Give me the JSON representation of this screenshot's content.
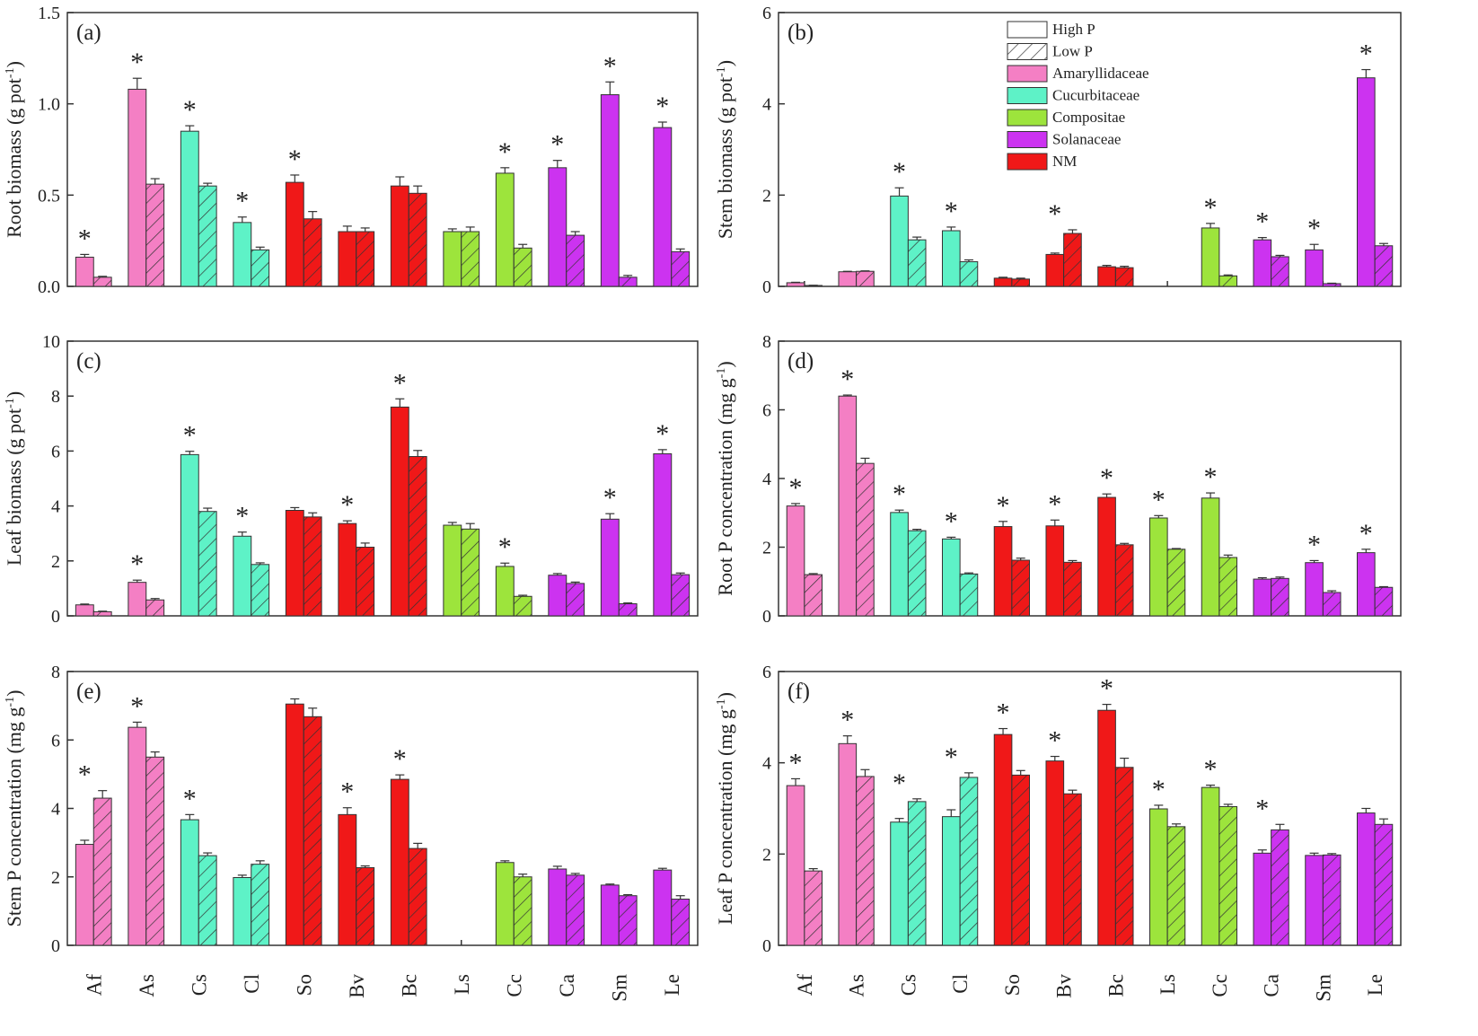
{
  "chart_data": [
    {
      "type": "bar",
      "panel_label": "(a)",
      "ylabel": "Root biomass (g pot",
      "ylabel_sup": "-1",
      "ylabel_close": ")",
      "ylim": [
        0,
        1.5
      ],
      "yticks": [
        "0.0",
        "0.5",
        "1.0",
        "1.5"
      ],
      "categories": [
        "Af",
        "As",
        "Cs",
        "Cl",
        "So",
        "Bv",
        "Bc",
        "Ls",
        "Cc",
        "Ca",
        "Sm",
        "Le"
      ],
      "families": [
        "Amaryllidaceae",
        "Amaryllidaceae",
        "Cucurbitaceae",
        "Cucurbitaceae",
        "NM",
        "NM",
        "NM",
        "Compositae",
        "Compositae",
        "Solanaceae",
        "Solanaceae",
        "Solanaceae"
      ],
      "series": [
        {
          "name": "High P",
          "values": [
            0.16,
            1.08,
            0.85,
            0.35,
            0.57,
            0.3,
            0.55,
            0.3,
            0.62,
            0.65,
            1.05,
            0.87
          ],
          "errors": [
            0.015,
            0.06,
            0.03,
            0.03,
            0.04,
            0.03,
            0.05,
            0.015,
            0.03,
            0.04,
            0.07,
            0.03
          ]
        },
        {
          "name": "Low P",
          "values": [
            0.05,
            0.56,
            0.55,
            0.2,
            0.37,
            0.3,
            0.51,
            0.3,
            0.21,
            0.28,
            0.05,
            0.19
          ],
          "errors": [
            0.005,
            0.03,
            0.015,
            0.015,
            0.04,
            0.02,
            0.04,
            0.025,
            0.02,
            0.02,
            0.01,
            0.015
          ]
        }
      ],
      "significant": [
        true,
        true,
        true,
        true,
        true,
        false,
        false,
        false,
        true,
        true,
        true,
        true
      ],
      "show_xlabels": false
    },
    {
      "type": "bar",
      "panel_label": "(b)",
      "ylabel": "Stem biomass (g pot",
      "ylabel_sup": "-1",
      "ylabel_close": ")",
      "ylim": [
        0,
        6
      ],
      "yticks": [
        "0",
        "2",
        "4",
        "6"
      ],
      "categories": [
        "Af",
        "As",
        "Cs",
        "Cl",
        "So",
        "Bv",
        "Bc",
        "Ls",
        "Cc",
        "Ca",
        "Sm",
        "Le"
      ],
      "families": [
        "Amaryllidaceae",
        "Amaryllidaceae",
        "Cucurbitaceae",
        "Cucurbitaceae",
        "NM",
        "NM",
        "NM",
        "Compositae",
        "Compositae",
        "Solanaceae",
        "Solanaceae",
        "Solanaceae"
      ],
      "series": [
        {
          "name": "High P",
          "values": [
            0.08,
            0.32,
            1.98,
            1.22,
            0.18,
            0.7,
            0.43,
            null,
            1.28,
            1.02,
            0.8,
            4.57
          ],
          "errors": [
            0.01,
            0.01,
            0.18,
            0.08,
            0.02,
            0.03,
            0.03,
            null,
            0.1,
            0.05,
            0.12,
            0.18
          ]
        },
        {
          "name": "Low P",
          "values": [
            0.02,
            0.33,
            1.02,
            0.54,
            0.16,
            1.16,
            0.41,
            null,
            0.23,
            0.65,
            0.06,
            0.89
          ],
          "errors": [
            0.005,
            0.01,
            0.06,
            0.04,
            0.02,
            0.08,
            0.03,
            null,
            0.02,
            0.03,
            0.01,
            0.05
          ]
        }
      ],
      "significant": [
        false,
        false,
        true,
        true,
        false,
        true,
        false,
        false,
        true,
        true,
        true,
        true
      ],
      "show_xlabels": false
    },
    {
      "type": "bar",
      "panel_label": "(c)",
      "ylabel": "Leaf biomass (g pot",
      "ylabel_sup": "-1",
      "ylabel_close": ")",
      "ylim": [
        0,
        10
      ],
      "yticks": [
        "0",
        "2",
        "4",
        "6",
        "8",
        "10"
      ],
      "categories": [
        "Af",
        "As",
        "Cs",
        "Cl",
        "So",
        "Bv",
        "Bc",
        "Ls",
        "Cc",
        "Ca",
        "Sm",
        "Le"
      ],
      "families": [
        "Amaryllidaceae",
        "Amaryllidaceae",
        "Cucurbitaceae",
        "Cucurbitaceae",
        "NM",
        "NM",
        "NM",
        "Compositae",
        "Compositae",
        "Solanaceae",
        "Solanaceae",
        "Solanaceae"
      ],
      "series": [
        {
          "name": "High P",
          "values": [
            0.4,
            1.22,
            5.87,
            2.9,
            3.84,
            3.36,
            7.6,
            3.3,
            1.8,
            1.48,
            3.52,
            5.9
          ],
          "errors": [
            0.03,
            0.08,
            0.12,
            0.15,
            0.1,
            0.1,
            0.3,
            0.1,
            0.12,
            0.06,
            0.2,
            0.15
          ]
        },
        {
          "name": "Low P",
          "values": [
            0.15,
            0.58,
            3.8,
            1.87,
            3.6,
            2.5,
            5.8,
            3.16,
            0.71,
            1.18,
            0.44,
            1.5
          ],
          "errors": [
            0.02,
            0.05,
            0.12,
            0.06,
            0.15,
            0.15,
            0.22,
            0.2,
            0.04,
            0.05,
            0.03,
            0.06
          ]
        }
      ],
      "significant": [
        false,
        true,
        true,
        true,
        false,
        true,
        true,
        false,
        true,
        false,
        true,
        true
      ],
      "show_xlabels": false
    },
    {
      "type": "bar",
      "panel_label": "(d)",
      "ylabel": "Root P concentration (mg g",
      "ylabel_sup": "-1",
      "ylabel_close": ")",
      "ylim": [
        0,
        8
      ],
      "yticks": [
        "0",
        "2",
        "4",
        "6",
        "8"
      ],
      "categories": [
        "Af",
        "As",
        "Cs",
        "Cl",
        "So",
        "Bv",
        "Bc",
        "Ls",
        "Cc",
        "Ca",
        "Sm",
        "Le"
      ],
      "families": [
        "Amaryllidaceae",
        "Amaryllidaceae",
        "Cucurbitaceae",
        "Cucurbitaceae",
        "NM",
        "NM",
        "NM",
        "Compositae",
        "Compositae",
        "Solanaceae",
        "Solanaceae",
        "Solanaceae"
      ],
      "series": [
        {
          "name": "High P",
          "values": [
            3.2,
            6.4,
            3.01,
            2.24,
            2.6,
            2.62,
            3.45,
            2.85,
            3.43,
            1.07,
            1.55,
            1.84
          ],
          "errors": [
            0.07,
            0.03,
            0.07,
            0.05,
            0.15,
            0.17,
            0.1,
            0.07,
            0.15,
            0.04,
            0.06,
            0.1
          ]
        },
        {
          "name": "Low P",
          "values": [
            1.2,
            4.44,
            2.48,
            1.22,
            1.62,
            1.56,
            2.07,
            1.94,
            1.7,
            1.09,
            0.68,
            0.83
          ],
          "errors": [
            0.03,
            0.15,
            0.04,
            0.03,
            0.06,
            0.05,
            0.04,
            0.02,
            0.07,
            0.04,
            0.05,
            0.02
          ]
        }
      ],
      "significant": [
        true,
        true,
        true,
        true,
        true,
        true,
        true,
        true,
        true,
        false,
        true,
        true
      ],
      "show_xlabels": false
    },
    {
      "type": "bar",
      "panel_label": "(e)",
      "ylabel": "Stem P concentration (mg g",
      "ylabel_sup": "-1",
      "ylabel_close": ")",
      "ylim": [
        0,
        8
      ],
      "yticks": [
        "0",
        "2",
        "4",
        "6",
        "8"
      ],
      "categories": [
        "Af",
        "As",
        "Cs",
        "Cl",
        "So",
        "Bv",
        "Bc",
        "Ls",
        "Cc",
        "Ca",
        "Sm",
        "Le"
      ],
      "families": [
        "Amaryllidaceae",
        "Amaryllidaceae",
        "Cucurbitaceae",
        "Cucurbitaceae",
        "NM",
        "NM",
        "NM",
        "Compositae",
        "Compositae",
        "Solanaceae",
        "Solanaceae",
        "Solanaceae"
      ],
      "series": [
        {
          "name": "High P",
          "values": [
            2.95,
            6.37,
            3.67,
            1.98,
            7.05,
            3.82,
            4.85,
            null,
            2.42,
            2.23,
            1.76,
            2.2
          ],
          "errors": [
            0.12,
            0.15,
            0.15,
            0.07,
            0.15,
            0.2,
            0.13,
            null,
            0.05,
            0.08,
            0.03,
            0.05
          ]
        },
        {
          "name": "Low P",
          "values": [
            4.3,
            5.5,
            2.62,
            2.37,
            6.68,
            2.27,
            2.83,
            null,
            2.0,
            2.05,
            1.45,
            1.35
          ],
          "errors": [
            0.22,
            0.15,
            0.08,
            0.1,
            0.25,
            0.05,
            0.15,
            null,
            0.08,
            0.05,
            0.03,
            0.1
          ]
        }
      ],
      "significant": [
        true,
        true,
        true,
        false,
        false,
        true,
        true,
        false,
        false,
        false,
        false,
        false
      ],
      "show_xlabels": true
    },
    {
      "type": "bar",
      "panel_label": "(f)",
      "ylabel": "Leaf P concentration (mg g",
      "ylabel_sup": "-1",
      "ylabel_close": ")",
      "ylim": [
        0,
        6
      ],
      "yticks": [
        "0",
        "2",
        "4",
        "6"
      ],
      "categories": [
        "Af",
        "As",
        "Cs",
        "Cl",
        "So",
        "Bv",
        "Bc",
        "Ls",
        "Cc",
        "Ca",
        "Sm",
        "Le"
      ],
      "families": [
        "Amaryllidaceae",
        "Amaryllidaceae",
        "Cucurbitaceae",
        "Cucurbitaceae",
        "NM",
        "NM",
        "NM",
        "Compositae",
        "Compositae",
        "Solanaceae",
        "Solanaceae",
        "Solanaceae"
      ],
      "series": [
        {
          "name": "High P",
          "values": [
            3.5,
            4.42,
            2.7,
            2.82,
            4.62,
            4.04,
            5.15,
            2.99,
            3.46,
            2.02,
            1.97,
            2.9
          ],
          "errors": [
            0.15,
            0.17,
            0.08,
            0.15,
            0.13,
            0.1,
            0.13,
            0.08,
            0.05,
            0.07,
            0.05,
            0.1
          ]
        },
        {
          "name": "Low P",
          "values": [
            1.63,
            3.7,
            3.15,
            3.68,
            3.73,
            3.32,
            3.9,
            2.6,
            3.04,
            2.53,
            1.98,
            2.65
          ],
          "errors": [
            0.05,
            0.15,
            0.06,
            0.1,
            0.1,
            0.08,
            0.2,
            0.06,
            0.05,
            0.12,
            0.03,
            0.12
          ]
        }
      ],
      "significant": [
        true,
        true,
        true,
        true,
        true,
        true,
        true,
        true,
        true,
        true,
        false,
        false
      ],
      "show_xlabels": true
    }
  ],
  "legend": {
    "location": "top-right of panel (b)",
    "entries": [
      {
        "label": "High P",
        "style": "plain"
      },
      {
        "label": "Low P",
        "style": "hatched"
      },
      {
        "label": "Amaryllidaceae",
        "color": "#F47FC4"
      },
      {
        "label": "Cucurbitaceae",
        "color": "#5EF2C7"
      },
      {
        "label": "Compositae",
        "color": "#9DE43C"
      },
      {
        "label": "Solanaceae",
        "color": "#CC33F0"
      },
      {
        "label": "NM",
        "color": "#F01818"
      }
    ]
  },
  "significance_marker": "*",
  "colors": {
    "Amaryllidaceae": "#F47FC4",
    "Cucurbitaceae": "#5EF2C7",
    "Compositae": "#9DE43C",
    "Solanaceae": "#CC33F0",
    "NM": "#F01818"
  }
}
